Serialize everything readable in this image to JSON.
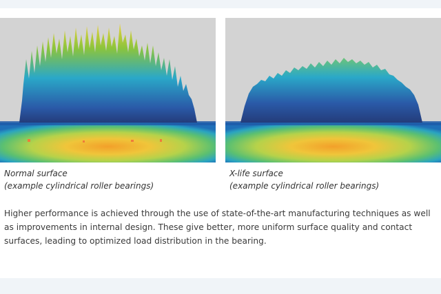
{
  "figures": [
    {
      "caption_line1": "Normal surface",
      "caption_line2": "(example cylindrical roller bearings)"
    },
    {
      "caption_line1": "X-life surface",
      "caption_line2": "(example cylindrical roller bearings)"
    }
  ],
  "description": "Higher performance is achieved through the use of state-of-the-art manufacturing techniques as well as improvements in internal design. These give better, more uniform surface quality and contact surfaces, leading to optimized load distribution in the bearing.",
  "colors": {
    "background": "#ffffff",
    "strip": "#f0f4f8",
    "figure_bg": "#d3d3d3",
    "text": "#3a3a3a"
  }
}
